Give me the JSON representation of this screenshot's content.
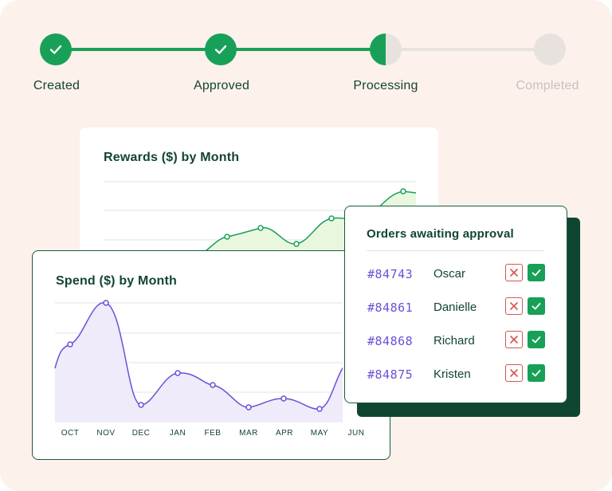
{
  "stepper": {
    "steps": [
      {
        "label": "Created",
        "state": "done"
      },
      {
        "label": "Approved",
        "state": "done"
      },
      {
        "label": "Processing",
        "state": "active"
      },
      {
        "label": "Completed",
        "state": "pending"
      }
    ],
    "colors": {
      "done": "#18a058",
      "pending": "#e8e2df",
      "pending_text": "#c7c2bf",
      "line": "#18a058"
    }
  },
  "rewards_card": {
    "title": "Rewards ($) by Month"
  },
  "spend_card": {
    "title": "Spend ($) by Month",
    "months": [
      "OCT",
      "NOV",
      "DEC",
      "JAN",
      "FEB",
      "MAR",
      "APR",
      "MAY",
      "JUN"
    ]
  },
  "orders_card": {
    "title": "Orders awaiting approval",
    "orders": [
      {
        "id": "#84743",
        "name": "Oscar"
      },
      {
        "id": "#84861",
        "name": "Danielle"
      },
      {
        "id": "#84868",
        "name": "Richard"
      },
      {
        "id": "#84875",
        "name": "Kristen"
      }
    ]
  },
  "colors": {
    "background": "#fdf1eb",
    "brand_dark": "#12452f",
    "accent_green": "#18a058",
    "accent_purple": "#6d4fd6",
    "reject_red": "#d9534f"
  }
}
